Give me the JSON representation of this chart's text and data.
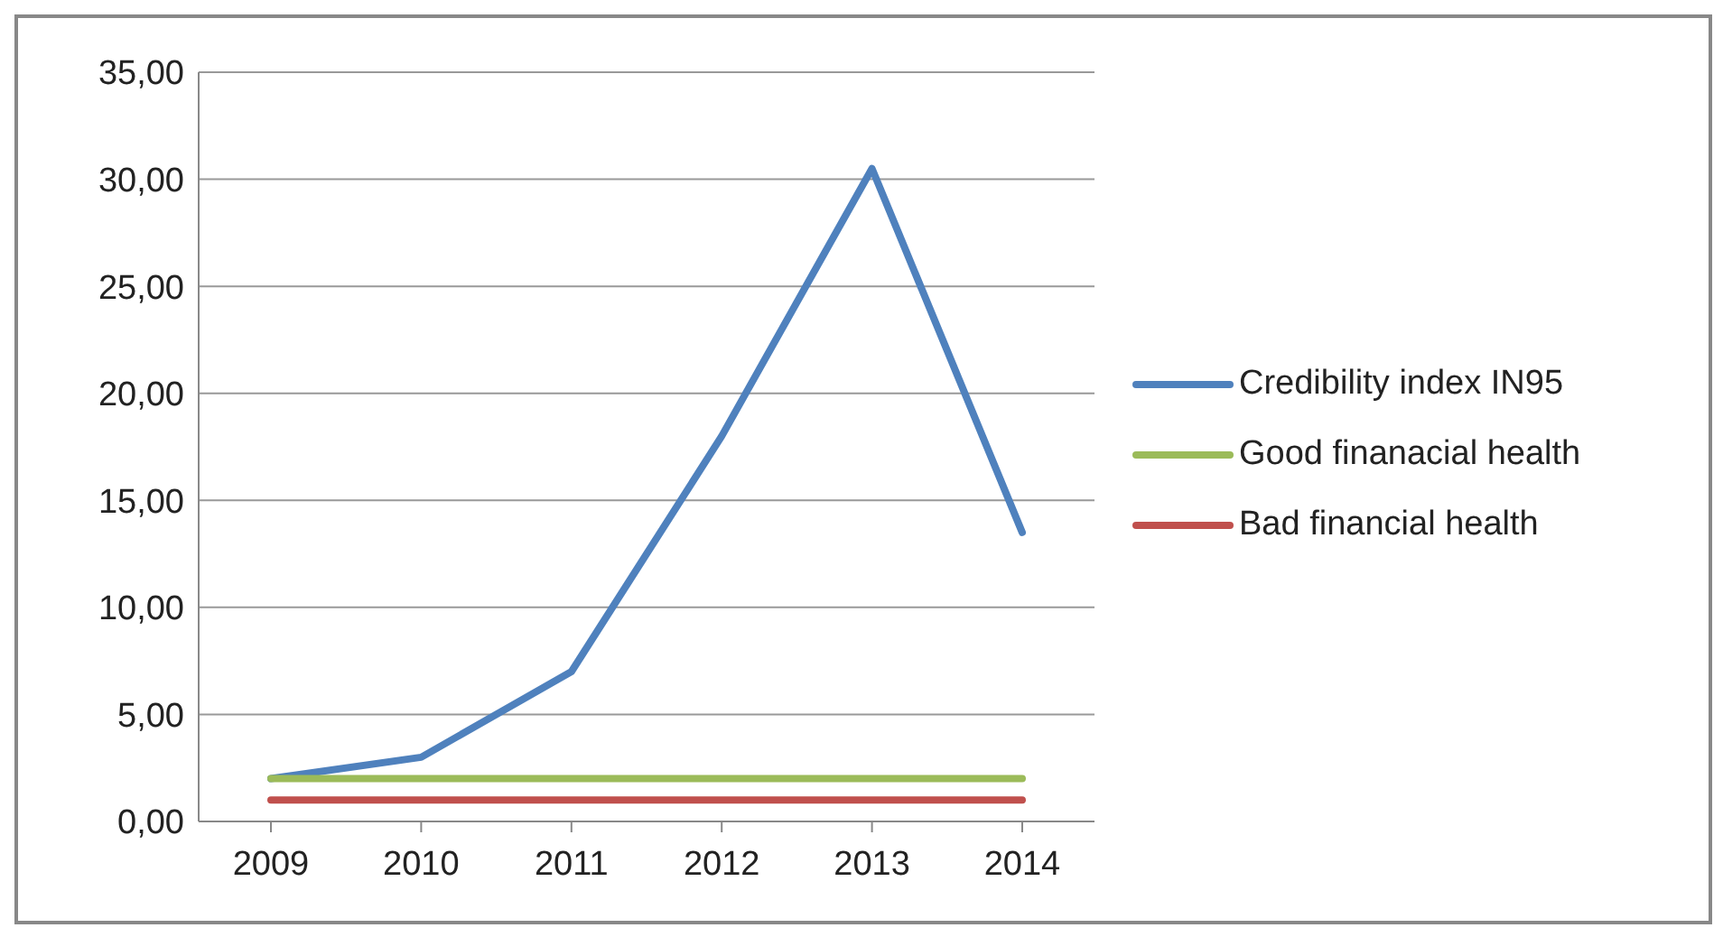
{
  "chart_data": {
    "type": "line",
    "categories": [
      "2009",
      "2010",
      "2011",
      "2012",
      "2013",
      "2014"
    ],
    "series": [
      {
        "name": "Credibility index IN95",
        "color": "#4f81bd",
        "values": [
          2.0,
          3.0,
          7.0,
          18.0,
          30.5,
          13.5
        ]
      },
      {
        "name": "Good finanacial health",
        "color": "#9bbb59",
        "values": [
          2,
          2,
          2,
          2,
          2,
          2
        ]
      },
      {
        "name": "Bad financial health",
        "color": "#c0504d",
        "values": [
          1,
          1,
          1,
          1,
          1,
          1
        ]
      }
    ],
    "ylim": [
      0,
      35
    ],
    "yticks": [
      {
        "value": 0,
        "label": "0,00"
      },
      {
        "value": 5,
        "label": "5,00"
      },
      {
        "value": 10,
        "label": "10,00"
      },
      {
        "value": 15,
        "label": "15,00"
      },
      {
        "value": 20,
        "label": "20,00"
      },
      {
        "value": 25,
        "label": "25,00"
      },
      {
        "value": 30,
        "label": "30,00"
      },
      {
        "value": 35,
        "label": "35,00"
      }
    ],
    "grid": "y",
    "legend": "right",
    "marker": "none",
    "line_style": "solid"
  }
}
